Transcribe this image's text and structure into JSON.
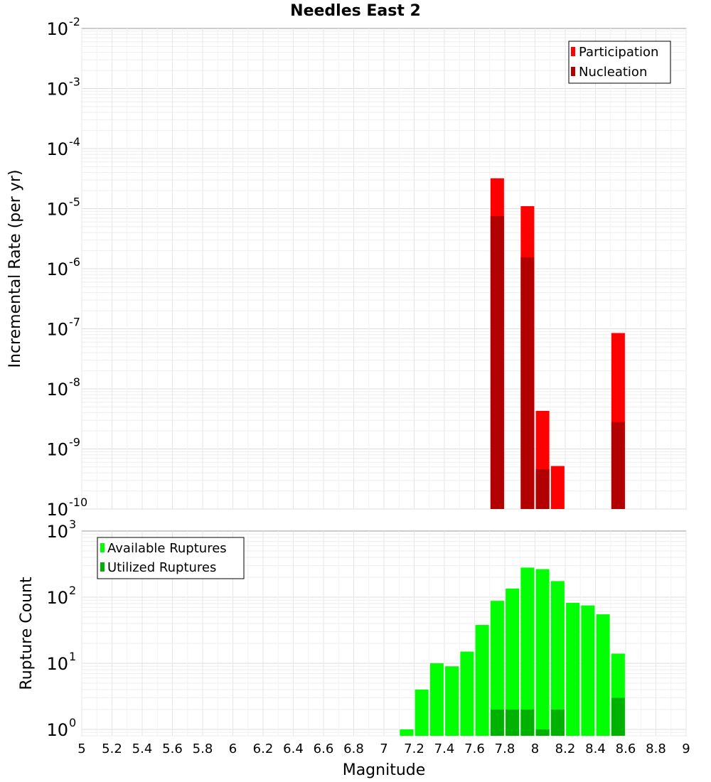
{
  "figure": {
    "title": "Needles East 2",
    "xlabel": "Magnitude"
  },
  "chart_data": [
    {
      "type": "bar",
      "panel": "top",
      "title": "Needles East 2",
      "ylabel": "Incremental Rate (per yr)",
      "yscale": "log",
      "ylim": [
        1e-10,
        0.01
      ],
      "xlim": [
        5,
        9
      ],
      "y_tick_exponents": [
        -10,
        -9,
        -8,
        -7,
        -6,
        -5,
        -4,
        -3,
        -2
      ],
      "legend_position": "top-right",
      "grid": true,
      "series": [
        {
          "name": "Participation",
          "color": "#ff0000",
          "x": [
            7.75,
            7.95,
            8.05,
            8.15,
            8.55
          ],
          "values": [
            3.2e-05,
            1.1e-05,
            4.3e-09,
            5.2e-10,
            8.5e-08
          ]
        },
        {
          "name": "Nucleation",
          "color": "#b20000",
          "x": [
            7.75,
            7.95,
            8.05,
            8.55
          ],
          "values": [
            7.5e-06,
            1.55e-06,
            4.6e-10,
            2.8e-09
          ]
        }
      ]
    },
    {
      "type": "bar",
      "panel": "bottom",
      "ylabel": "Rupture Count",
      "xlabel": "Magnitude",
      "yscale": "log",
      "ylim": [
        0.8,
        1000
      ],
      "xlim": [
        5,
        9
      ],
      "y_tick_exponents": [
        0,
        1,
        2,
        3
      ],
      "legend_position": "top-left",
      "grid": true,
      "series": [
        {
          "name": "Available Ruptures",
          "color": "#00ff00",
          "x": [
            7.15,
            7.25,
            7.35,
            7.45,
            7.55,
            7.65,
            7.75,
            7.85,
            7.95,
            8.05,
            8.15,
            8.25,
            8.35,
            8.45,
            8.55
          ],
          "values": [
            1,
            4,
            10,
            9,
            15,
            38,
            88,
            135,
            280,
            265,
            175,
            82,
            75,
            55,
            14
          ]
        },
        {
          "name": "Utilized Ruptures",
          "color": "#00b200",
          "x": [
            7.75,
            7.85,
            7.95,
            8.05,
            8.15,
            8.55
          ],
          "values": [
            2,
            2,
            2,
            1,
            2,
            3
          ]
        }
      ]
    }
  ],
  "x_tick_labels": [
    "5",
    "5.2",
    "5.4",
    "5.6",
    "5.8",
    "6",
    "6.2",
    "6.4",
    "6.6",
    "6.8",
    "7",
    "7.2",
    "7.4",
    "7.6",
    "7.8",
    "8",
    "8.2",
    "8.4",
    "8.6",
    "8.8",
    "9"
  ]
}
